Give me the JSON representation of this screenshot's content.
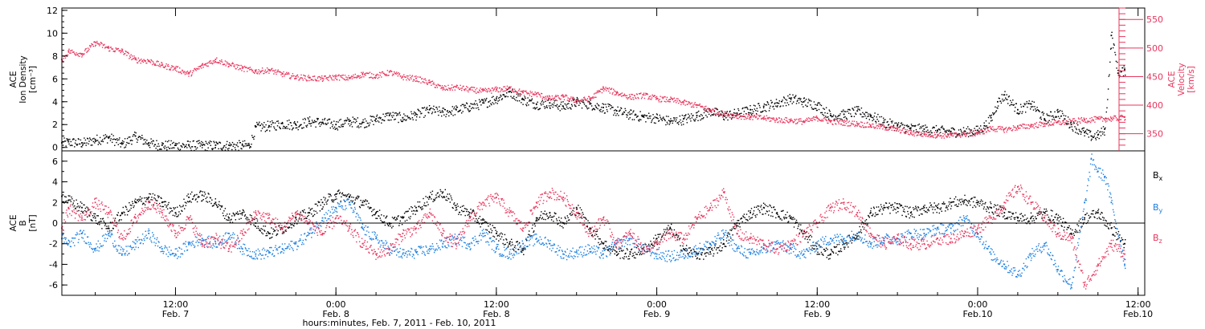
{
  "chart_data": [
    {
      "type": "scatter",
      "panel": "top",
      "x_unit": "hours since Feb. 7, 2011 00:00",
      "xlim": [
        3.5,
        84.5
      ],
      "ylabel_left": [
        "ACE",
        "Ion Density",
        "[cm⁻³]"
      ],
      "ylabel_right": [
        "ACE",
        "Velocity",
        "[km/s]"
      ],
      "ylim_left": [
        -0.3,
        12.2
      ],
      "ylim_right": [
        320,
        570
      ],
      "yticks_left": [
        0,
        2,
        4,
        6,
        8,
        10,
        12
      ],
      "yticks_right": [
        350,
        400,
        450,
        500,
        550
      ],
      "series": [
        {
          "color": "#000000",
          "axis": "left",
          "x": [
            3.5,
            4,
            5,
            6,
            7,
            8,
            9,
            10,
            11,
            12,
            13,
            14,
            15,
            16,
            17,
            17.5,
            18,
            19,
            20,
            21,
            22,
            23,
            24,
            25,
            26,
            27,
            28,
            29,
            30,
            31,
            32,
            33,
            34,
            35,
            36,
            37,
            38,
            39,
            40,
            41,
            42,
            43,
            44,
            45,
            46,
            47,
            48,
            49,
            50,
            51,
            52,
            53,
            54,
            55,
            56,
            57,
            58,
            59,
            60,
            61,
            62,
            63,
            64,
            65,
            66,
            67,
            68,
            69,
            70,
            71,
            72,
            72.5,
            73,
            73.5,
            74,
            75,
            76,
            77,
            78,
            79,
            80,
            80.5,
            81,
            81.5,
            82,
            82.5,
            83
          ],
          "values": [
            0.4,
            0.5,
            0.4,
            0.7,
            0.9,
            0.3,
            1.0,
            0.4,
            0.2,
            0.2,
            0.2,
            0.2,
            0.2,
            0.2,
            0.2,
            0.2,
            1.8,
            1.9,
            2.1,
            2.0,
            2.3,
            2.2,
            2.0,
            2.3,
            2.2,
            2.5,
            2.8,
            2.6,
            2.9,
            3.3,
            3.1,
            3.3,
            3.6,
            3.9,
            4.3,
            4.9,
            4.2,
            3.8,
            3.9,
            3.6,
            4.0,
            3.8,
            3.5,
            3.2,
            2.9,
            2.7,
            2.6,
            2.3,
            2.5,
            2.8,
            3.2,
            2.8,
            3.0,
            3.3,
            3.6,
            3.9,
            4.3,
            4.0,
            3.7,
            2.8,
            2.9,
            3.2,
            2.8,
            2.2,
            1.9,
            1.7,
            1.6,
            1.5,
            1.4,
            1.4,
            1.5,
            1.9,
            2.6,
            4.0,
            4.6,
            3.3,
            3.8,
            2.5,
            3.1,
            2.0,
            1.3,
            1.0,
            1.1,
            1.6,
            9.8,
            6.5,
            6.8
          ]
        },
        {
          "color": "#E8365D",
          "axis": "right",
          "x": [
            3.5,
            4,
            5,
            6,
            7,
            8,
            9,
            10,
            11,
            12,
            13,
            14,
            15,
            16,
            17,
            18,
            19,
            20,
            21,
            22,
            23,
            24,
            25,
            26,
            27,
            28,
            29,
            30,
            31,
            32,
            33,
            34,
            35,
            36,
            37,
            38,
            39,
            40,
            41,
            42,
            43,
            44,
            45,
            46,
            47,
            48,
            49,
            50,
            51,
            52,
            53,
            54,
            55,
            56,
            57,
            58,
            59,
            60,
            61,
            62,
            63,
            64,
            65,
            66,
            67,
            68,
            69,
            70,
            71,
            72,
            73,
            74,
            75,
            76,
            77,
            78,
            79,
            80,
            81,
            82,
            83
          ],
          "values": [
            480,
            495,
            490,
            510,
            500,
            495,
            480,
            478,
            470,
            465,
            455,
            470,
            480,
            472,
            465,
            460,
            462,
            455,
            450,
            448,
            447,
            450,
            448,
            455,
            452,
            458,
            450,
            447,
            440,
            430,
            432,
            428,
            425,
            428,
            430,
            422,
            420,
            412,
            415,
            408,
            412,
            430,
            422,
            415,
            418,
            412,
            410,
            405,
            400,
            392,
            385,
            382,
            380,
            378,
            375,
            374,
            372,
            378,
            372,
            370,
            368,
            365,
            362,
            358,
            352,
            350,
            348,
            348,
            350,
            352,
            360,
            358,
            362,
            365,
            368,
            370,
            372,
            375,
            376,
            377,
            379
          ]
        }
      ]
    },
    {
      "type": "scatter",
      "panel": "bottom",
      "x_unit": "hours since Feb. 7, 2011 00:00",
      "xlim": [
        3.5,
        84.5
      ],
      "ylabel": [
        "ACE",
        "B",
        "[nT]"
      ],
      "ylim": [
        -7,
        7
      ],
      "yticks": [
        -6,
        -4,
        -2,
        0,
        2,
        4,
        6
      ],
      "zero_line": true,
      "legend_position": "right",
      "series": [
        {
          "name": "Bx",
          "color": "#000000",
          "x": [
            3.5,
            4,
            5,
            6,
            7,
            8,
            9,
            10,
            11,
            12,
            13,
            14,
            15,
            16,
            17,
            18,
            19,
            20,
            21,
            22,
            23,
            24,
            25,
            26,
            27,
            28,
            29,
            30,
            31,
            32,
            33,
            34,
            35,
            36,
            37,
            38,
            39,
            40,
            41,
            42,
            43,
            44,
            45,
            46,
            47,
            48,
            49,
            50,
            51,
            52,
            53,
            54,
            55,
            56,
            57,
            58,
            59,
            60,
            61,
            62,
            63,
            64,
            65,
            66,
            67,
            68,
            69,
            70,
            71,
            72,
            73,
            74,
            75,
            76,
            77,
            78,
            79,
            80,
            81,
            82,
            83
          ],
          "values": [
            2.6,
            2.2,
            1.5,
            0.5,
            -0.5,
            1.0,
            2.0,
            2.5,
            2.0,
            1.0,
            2.5,
            2.7,
            2.0,
            0.5,
            1.0,
            0.0,
            -1.0,
            -0.5,
            0.5,
            1.0,
            2.0,
            2.8,
            2.5,
            2.0,
            1.0,
            0.0,
            0.5,
            1.5,
            2.5,
            3.0,
            1.5,
            1.0,
            0.0,
            -1.0,
            -2.0,
            -2.5,
            0.5,
            1.0,
            0.0,
            1.5,
            -0.5,
            -2.0,
            -2.8,
            -3.0,
            -2.5,
            -1.5,
            -0.5,
            -2.5,
            -3.0,
            -2.8,
            -2.0,
            0.0,
            1.0,
            1.5,
            1.0,
            0.5,
            -1.0,
            -2.5,
            -3.0,
            -2.0,
            -1.0,
            1.0,
            1.5,
            1.5,
            1.0,
            1.5,
            1.5,
            2.0,
            2.2,
            2.0,
            1.5,
            1.0,
            0.5,
            0.5,
            1.0,
            0.5,
            -1.0,
            0.5,
            1.0,
            -0.5,
            -2.0
          ]
        },
        {
          "name": "By",
          "color": "#1B7FE0",
          "x": [
            3.5,
            4,
            5,
            6,
            7,
            8,
            9,
            10,
            11,
            12,
            13,
            14,
            15,
            16,
            17,
            18,
            19,
            20,
            21,
            22,
            23,
            24,
            25,
            26,
            27,
            28,
            29,
            30,
            31,
            32,
            33,
            34,
            35,
            36,
            37,
            38,
            39,
            40,
            41,
            42,
            43,
            44,
            45,
            46,
            47,
            48,
            49,
            50,
            51,
            52,
            53,
            54,
            55,
            56,
            57,
            58,
            59,
            60,
            61,
            62,
            63,
            64,
            65,
            66,
            67,
            68,
            69,
            70,
            71,
            72,
            73,
            74,
            75,
            76,
            77,
            78,
            79,
            80,
            80.5,
            81,
            81.5,
            82,
            83
          ],
          "values": [
            -1.5,
            -2.0,
            -1.0,
            -2.5,
            -1.0,
            -3.0,
            -2.0,
            -1.0,
            -2.5,
            -3.0,
            -2.0,
            -1.5,
            -2.0,
            -1.0,
            -2.5,
            -3.0,
            -2.8,
            -2.5,
            -2.0,
            -1.0,
            0.5,
            1.5,
            2.0,
            -0.5,
            -1.5,
            -2.5,
            -3.0,
            -2.8,
            -2.5,
            -2.0,
            -1.5,
            -2.0,
            -1.0,
            -2.5,
            -3.0,
            -2.0,
            -1.5,
            -2.0,
            -3.0,
            -2.8,
            -2.5,
            -3.0,
            -2.0,
            -1.5,
            -2.5,
            -3.0,
            -3.2,
            -3.0,
            -2.5,
            -2.0,
            -1.0,
            -2.5,
            -3.0,
            -2.5,
            -2.0,
            -2.5,
            -3.0,
            -2.0,
            -1.5,
            -1.5,
            -1.0,
            -2.0,
            -1.5,
            -1.5,
            -1.0,
            -1.0,
            -0.5,
            -0.5,
            0.5,
            -1.0,
            -3.0,
            -4.0,
            -5.0,
            -3.0,
            -2.0,
            -4.5,
            -6.0,
            2.0,
            6.2,
            5.0,
            4.5,
            2.0,
            -4.0
          ]
        },
        {
          "name": "Bz",
          "color": "#E8365D",
          "x": [
            3.5,
            4,
            5,
            6,
            7,
            8,
            9,
            10,
            11,
            12,
            13,
            14,
            15,
            16,
            17,
            18,
            19,
            20,
            21,
            22,
            23,
            24,
            25,
            26,
            27,
            28,
            29,
            30,
            31,
            32,
            33,
            34,
            35,
            36,
            37,
            38,
            39,
            40,
            41,
            42,
            43,
            44,
            45,
            46,
            47,
            48,
            49,
            50,
            51,
            52,
            53,
            54,
            55,
            56,
            57,
            58,
            59,
            60,
            61,
            62,
            63,
            64,
            65,
            66,
            67,
            68,
            69,
            70,
            71,
            72,
            73,
            74,
            75,
            76,
            77,
            78,
            79,
            80,
            81,
            82,
            83
          ],
          "values": [
            -0.5,
            1.5,
            0.5,
            2.0,
            1.0,
            -1.5,
            0.5,
            2.0,
            1.0,
            -1.0,
            0.5,
            -2.0,
            -1.5,
            -2.5,
            -1.0,
            1.0,
            0.5,
            -0.5,
            1.0,
            0.0,
            -1.0,
            0.5,
            -0.5,
            -2.0,
            -3.0,
            -2.5,
            -1.0,
            -0.5,
            1.0,
            -1.0,
            -2.0,
            0.5,
            2.0,
            2.5,
            1.0,
            -0.5,
            2.0,
            3.0,
            2.5,
            1.0,
            -1.0,
            0.5,
            -2.0,
            -1.0,
            -2.5,
            -2.0,
            -1.0,
            -1.5,
            0.5,
            1.5,
            3.0,
            -1.0,
            -1.5,
            -2.0,
            -2.5,
            -2.0,
            -1.0,
            0.0,
            1.5,
            2.0,
            1.0,
            -1.0,
            -2.0,
            -1.5,
            -2.0,
            -2.0,
            -1.5,
            -1.5,
            -1.0,
            -0.5,
            0.5,
            2.0,
            3.5,
            2.0,
            0.5,
            -1.0,
            -1.5,
            -6.0,
            -4.0,
            -2.0,
            -3.0
          ]
        }
      ]
    }
  ],
  "axis": {
    "xticks": [
      {
        "x": 12,
        "time": "12:00",
        "date": "Feb. 7"
      },
      {
        "x": 24,
        "time": "0:00",
        "date": "Feb. 8"
      },
      {
        "x": 36,
        "time": "12:00",
        "date": "Feb. 8"
      },
      {
        "x": 48,
        "time": "0:00",
        "date": "Feb. 9"
      },
      {
        "x": 60,
        "time": "12:00",
        "date": "Feb. 9"
      },
      {
        "x": 72,
        "time": "0:00",
        "date": "Feb.10"
      },
      {
        "x": 84,
        "time": "12:00",
        "date": "Feb.10"
      }
    ],
    "xlabel": "hours:minutes, Feb.  7, 2011 - Feb. 10, 2011"
  },
  "legend": {
    "bx": {
      "base": "B",
      "sub": "x"
    },
    "by": {
      "base": "B",
      "sub": "y"
    },
    "bz": {
      "base": "B",
      "sub": "z"
    }
  }
}
